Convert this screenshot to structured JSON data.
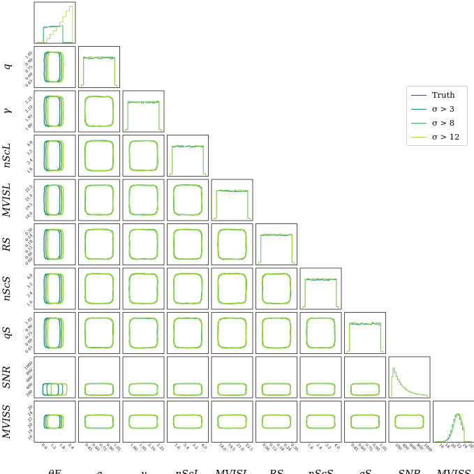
{
  "chart_data": {
    "type": "corner",
    "parameters": [
      {
        "key": "thetaE",
        "label": "θ_E",
        "ticks": [
          "0.6",
          "1.2",
          "1.8",
          "2.4"
        ],
        "range": [
          0.3,
          2.7
        ]
      },
      {
        "key": "q",
        "label": "q",
        "ticks": [
          "0.45",
          "0.60",
          "0.75",
          "0.90",
          "1.05"
        ],
        "range": [
          0.38,
          1.1
        ]
      },
      {
        "key": "gamma",
        "label": "γ",
        "ticks": [
          "1.80",
          "1.95",
          "2.10",
          "2.25"
        ],
        "range": [
          1.75,
          2.3
        ]
      },
      {
        "key": "nScL",
        "label": "n_Sc^L",
        "ticks": [
          "1.6",
          "2.4",
          "3.2",
          "4.0"
        ],
        "range": [
          1.0,
          4.2
        ]
      },
      {
        "key": "MvisL",
        "label": "M_VIS^L",
        "ticks": [
          "18.0",
          "19.5",
          "21.0",
          "22.5"
        ],
        "range": [
          17.5,
          23.2
        ]
      },
      {
        "key": "RS",
        "label": "R_S",
        "ticks": [
          "0.06",
          "0.12",
          "0.18",
          "0.24",
          "0.30"
        ],
        "range": [
          0.0,
          0.32
        ]
      },
      {
        "key": "nScS",
        "label": "n_Sc^S",
        "ticks": [
          "1.6",
          "2.4",
          "3.2",
          "4.0"
        ],
        "range": [
          1.0,
          4.2
        ]
      },
      {
        "key": "qS",
        "label": "q_S",
        "ticks": [
          "0.45",
          "0.60",
          "0.75",
          "0.90",
          "1.05"
        ],
        "range": [
          0.38,
          1.1
        ]
      },
      {
        "key": "SNR",
        "label": "SNR",
        "ticks": [
          "200",
          "400",
          "600",
          "800",
          "1000"
        ],
        "range": [
          0,
          1050
        ]
      },
      {
        "key": "MvisS",
        "label": "M_VIS^S",
        "ticks": [
          "16",
          "18",
          "20",
          "22",
          "24",
          "26"
        ],
        "range": [
          16,
          26.5
        ]
      }
    ],
    "y_ticks": {
      "q": [
        "0.45",
        "0.60",
        "0.75",
        "0.90",
        "1.05"
      ],
      "gamma": [
        "1.80",
        "1.95",
        "2.10",
        "2.25"
      ],
      "nScL": [
        "1.6",
        "2.4",
        "3.2",
        "4.0"
      ],
      "MvisL": [
        "18.0",
        "19.5",
        "21.0",
        "22.5"
      ],
      "RS": [
        "0.00",
        "0.06",
        "0.12",
        "0.18",
        "0.24",
        "0.30"
      ],
      "nScS": [
        "1.6",
        "2.4",
        "3.2",
        "4.0"
      ],
      "qS": [
        "0.45",
        "0.60",
        "0.75",
        "0.90",
        "1.05"
      ],
      "SNR": [
        "200",
        "400",
        "600",
        "800",
        "1000"
      ],
      "MvisS": [
        "16",
        "18",
        "20",
        "22",
        "24",
        "26"
      ]
    },
    "series": [
      {
        "name": "Truth",
        "color": "#3b3f8f"
      },
      {
        "name": "σ > 3",
        "color": "#1a8a8a"
      },
      {
        "name": "σ > 8",
        "color": "#3aaa5c"
      },
      {
        "name": "σ > 12",
        "color": "#9fd63c"
      }
    ],
    "histograms": {
      "thetaE": {
        "bins": [
          0.3,
          0.5,
          0.7,
          0.9,
          1.1,
          1.3,
          1.5,
          1.7,
          1.9,
          2.1,
          2.3,
          2.5
        ],
        "sigma3": [
          0,
          0,
          0.42,
          0.42,
          0.44,
          0.44,
          0.44,
          0.45,
          0,
          0,
          0
        ],
        "sigma8": [
          0,
          0,
          0.4,
          0.42,
          0.42,
          0.43,
          0.44,
          0.45,
          0,
          0,
          0
        ],
        "sigma12": [
          0,
          0,
          0,
          0.1,
          0.22,
          0.32,
          0.42,
          0.55,
          0.7,
          0.85,
          0.98
        ]
      },
      "flat": {
        "level": 0.78,
        "noise": 0.04
      }
    },
    "ylim_note": "corner plot of posterior samples"
  }
}
